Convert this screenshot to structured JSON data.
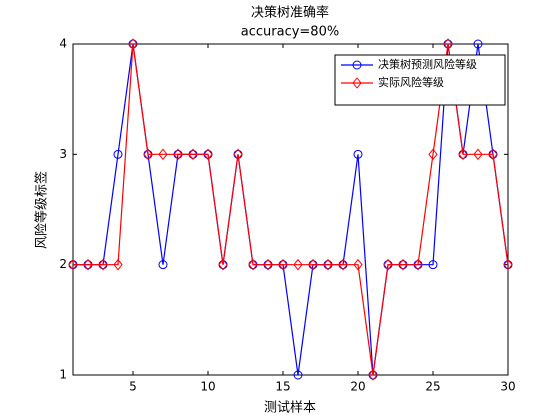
{
  "chart_data": {
    "type": "line",
    "title": "决策树准确率",
    "subtitle": "accuracy=80%",
    "xlabel": "测试样本",
    "ylabel": "风险等级标签",
    "x": [
      1,
      2,
      3,
      4,
      5,
      6,
      7,
      8,
      9,
      10,
      11,
      12,
      13,
      14,
      15,
      16,
      17,
      18,
      19,
      20,
      21,
      22,
      23,
      24,
      25,
      26,
      27,
      28,
      29,
      30
    ],
    "series": [
      {
        "name": "决策树预测风险等级",
        "color": "#0000ff",
        "marker": "circle",
        "values": [
          2,
          2,
          2,
          3,
          4,
          3,
          2,
          3,
          3,
          3,
          2,
          3,
          2,
          2,
          2,
          1,
          2,
          2,
          2,
          3,
          1,
          2,
          2,
          2,
          2,
          4,
          3,
          4,
          3,
          2
        ]
      },
      {
        "name": "实际风险等级",
        "color": "#ff0000",
        "marker": "diamond",
        "values": [
          2,
          2,
          2,
          2,
          4,
          3,
          3,
          3,
          3,
          3,
          2,
          3,
          2,
          2,
          2,
          2,
          2,
          2,
          2,
          2,
          1,
          2,
          2,
          2,
          3,
          4,
          3,
          3,
          3,
          2
        ]
      }
    ],
    "xlim": [
      1,
      30
    ],
    "xticks": [
      5,
      10,
      15,
      20,
      25,
      30
    ],
    "ylim": [
      1,
      4
    ],
    "yticks": [
      1,
      2,
      3,
      4
    ],
    "grid": false,
    "legend": "northeast"
  }
}
